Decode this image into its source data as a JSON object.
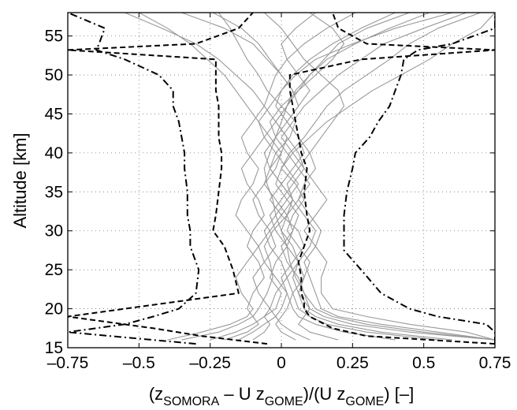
{
  "chart_data": {
    "type": "line",
    "xlabel": {
      "parts": [
        {
          "text": "(z",
          "sub": false
        },
        {
          "text": "SOMORA",
          "sub": true
        },
        {
          "text": " – U z",
          "sub": false
        },
        {
          "text": "GOME",
          "sub": true
        },
        {
          "text": ")/(U z",
          "sub": false
        },
        {
          "text": "GOME",
          "sub": true
        },
        {
          "text": ") [–]",
          "sub": false
        }
      ]
    },
    "ylabel": "Altitude [km]",
    "xlim": [
      -0.75,
      0.75
    ],
    "ylim": [
      15,
      58
    ],
    "x_ticks": [
      "–0.75",
      "–0.5",
      "–0.25",
      "0",
      "0.25",
      "0.5",
      "0.75"
    ],
    "x_tick_values": [
      -0.75,
      -0.5,
      -0.25,
      0,
      0.25,
      0.5,
      0.75
    ],
    "y_ticks": [
      "15",
      "20",
      "25",
      "30",
      "35",
      "40",
      "45",
      "50",
      "55"
    ],
    "y_tick_values": [
      15,
      20,
      25,
      30,
      35,
      40,
      45,
      50,
      55
    ],
    "grid": true,
    "colors": {
      "individual_profiles": "#999999",
      "statistics": "#000000"
    },
    "statistics": [
      {
        "line_style": "dashed",
        "altitude": [
          15.5,
          16.5,
          17.5,
          19,
          20,
          21,
          22,
          24,
          26,
          28,
          30,
          32,
          35,
          38,
          40,
          42,
          44,
          46,
          48,
          50,
          52,
          53.2,
          54,
          56,
          58
        ],
        "x": [
          0.75,
          0.3,
          0.18,
          0.1,
          0.08,
          0.08,
          0.07,
          0.07,
          0.06,
          0.08,
          0.1,
          0.09,
          0.08,
          0.09,
          0.07,
          0.06,
          0.05,
          0.04,
          0.03,
          0.03,
          0.28,
          0.75,
          0.3,
          0.2,
          0.18
        ]
      },
      {
        "line_style": "dashed",
        "altitude": [
          15.5,
          16.5,
          17.5,
          19,
          20,
          22,
          25,
          28,
          30,
          32,
          35,
          38,
          40,
          42,
          44,
          46,
          48,
          50,
          52,
          53.2,
          54,
          56,
          58
        ],
        "x": [
          -0.05,
          -0.28,
          -0.45,
          -0.75,
          -0.55,
          -0.15,
          -0.17,
          -0.2,
          -0.24,
          -0.23,
          -0.22,
          -0.21,
          -0.21,
          -0.22,
          -0.22,
          -0.22,
          -0.23,
          -0.23,
          -0.23,
          -0.75,
          -0.3,
          -0.15,
          -0.1
        ]
      },
      {
        "line_style": "dashdot",
        "altitude": [
          15.5,
          16.5,
          17,
          18,
          19,
          20,
          22,
          25,
          27.5,
          30,
          32,
          35,
          38,
          40,
          42,
          44,
          46,
          48,
          50,
          52,
          53.2,
          54,
          56,
          58
        ],
        "x": [
          0.75,
          0.75,
          0.75,
          0.72,
          0.55,
          0.45,
          0.35,
          0.28,
          0.22,
          0.22,
          0.22,
          0.23,
          0.25,
          0.26,
          0.31,
          0.34,
          0.38,
          0.4,
          0.42,
          0.43,
          0.48,
          0.6,
          0.75,
          0.75
        ]
      },
      {
        "line_style": "dashdot",
        "altitude": [
          15.5,
          16.5,
          17,
          18,
          19,
          20,
          22,
          25,
          28,
          30,
          32,
          35,
          38,
          40,
          42,
          44,
          46,
          48,
          50,
          52,
          53.2,
          54,
          56,
          58
        ],
        "x": [
          -0.3,
          -0.6,
          -0.75,
          -0.55,
          -0.45,
          -0.36,
          -0.3,
          -0.29,
          -0.32,
          -0.32,
          -0.33,
          -0.33,
          -0.34,
          -0.34,
          -0.35,
          -0.36,
          -0.38,
          -0.38,
          -0.43,
          -0.55,
          -0.65,
          -0.64,
          -0.62,
          -0.75
        ]
      }
    ],
    "individual_profiles": [
      {
        "altitude": [
          16,
          17,
          18,
          19,
          20,
          22,
          24,
          26,
          28,
          30,
          32,
          34,
          36,
          38,
          40,
          42,
          44,
          46,
          48,
          50,
          52,
          54,
          56,
          58
        ],
        "x": [
          0.75,
          0.45,
          0.25,
          0.15,
          0.1,
          0.08,
          0.05,
          0.03,
          0.02,
          0.0,
          -0.02,
          -0.03,
          -0.05,
          -0.06,
          -0.04,
          -0.02,
          0.0,
          0.02,
          0.05,
          0.1,
          0.15,
          0.2,
          0.3,
          0.45
        ]
      },
      {
        "altitude": [
          16,
          17,
          18,
          19,
          20,
          22,
          24,
          26,
          28,
          30,
          32,
          34,
          36,
          38,
          40,
          42,
          44,
          46,
          48,
          50,
          52,
          54,
          56,
          58
        ],
        "x": [
          -0.35,
          -0.22,
          -0.15,
          -0.1,
          -0.08,
          -0.05,
          -0.03,
          -0.04,
          -0.06,
          -0.03,
          0.02,
          0.04,
          0.0,
          -0.04,
          -0.02,
          0.03,
          0.05,
          0.0,
          -0.05,
          -0.08,
          -0.12,
          -0.15,
          -0.18,
          -0.22
        ]
      },
      {
        "altitude": [
          16,
          17,
          18,
          19,
          20,
          22,
          24,
          26,
          28,
          30,
          32,
          34,
          36,
          38,
          40,
          42,
          44,
          46,
          48,
          50,
          52,
          54,
          56,
          58
        ],
        "x": [
          0.6,
          0.35,
          0.2,
          0.12,
          0.08,
          0.06,
          0.08,
          0.1,
          0.06,
          0.02,
          0.04,
          0.08,
          0.05,
          0.0,
          0.03,
          0.08,
          0.12,
          0.16,
          0.22,
          0.3,
          0.38,
          0.45,
          0.55,
          0.7
        ]
      },
      {
        "altitude": [
          16,
          17,
          18,
          19,
          20,
          22,
          24,
          26,
          28,
          30,
          32,
          34,
          36,
          38,
          40,
          42,
          44,
          46,
          48,
          50,
          52,
          54,
          56,
          58
        ],
        "x": [
          -0.2,
          -0.12,
          -0.08,
          -0.1,
          -0.12,
          -0.1,
          -0.06,
          -0.08,
          -0.12,
          -0.1,
          -0.06,
          -0.08,
          -0.12,
          -0.14,
          -0.1,
          -0.06,
          -0.02,
          0.02,
          0.04,
          0.0,
          -0.05,
          -0.1,
          -0.2,
          -0.35
        ]
      },
      {
        "altitude": [
          16,
          17,
          18,
          19,
          20,
          22,
          24,
          26,
          28,
          30,
          32,
          34,
          36,
          38,
          40,
          42,
          44,
          46,
          48,
          50,
          52,
          54,
          56,
          58
        ],
        "x": [
          0.75,
          0.55,
          0.35,
          0.2,
          0.14,
          0.12,
          0.1,
          0.08,
          0.12,
          0.14,
          0.1,
          0.06,
          0.08,
          0.12,
          0.1,
          0.06,
          0.02,
          -0.02,
          0.0,
          0.05,
          0.12,
          0.25,
          0.4,
          0.6
        ]
      },
      {
        "altitude": [
          16,
          17,
          18,
          19,
          20,
          22,
          24,
          26,
          28,
          30,
          32,
          34,
          36,
          38,
          40,
          42,
          44,
          46,
          48,
          50,
          52,
          54,
          56,
          58
        ],
        "x": [
          -0.4,
          -0.28,
          -0.18,
          -0.12,
          -0.1,
          -0.14,
          -0.16,
          -0.12,
          -0.08,
          -0.12,
          -0.16,
          -0.14,
          -0.1,
          -0.08,
          -0.12,
          -0.14,
          -0.1,
          -0.06,
          -0.1,
          -0.16,
          -0.22,
          -0.3,
          -0.42,
          -0.55
        ]
      },
      {
        "altitude": [
          16,
          17,
          18,
          19,
          20,
          22,
          24,
          26,
          28,
          30,
          32,
          34,
          36,
          38,
          40,
          42,
          44,
          46,
          48,
          50,
          52,
          54,
          56,
          58
        ],
        "x": [
          0.4,
          0.22,
          0.12,
          0.06,
          0.04,
          0.02,
          0.0,
          0.04,
          0.08,
          0.06,
          0.0,
          -0.04,
          0.0,
          0.04,
          0.08,
          0.06,
          0.02,
          0.06,
          0.1,
          0.06,
          0.02,
          0.0,
          0.05,
          0.12
        ]
      },
      {
        "altitude": [
          16,
          17,
          18,
          19,
          20,
          22,
          24,
          26,
          28,
          30,
          32,
          34,
          36,
          38,
          40,
          42,
          44,
          46,
          48,
          50,
          52,
          54,
          56,
          58
        ],
        "x": [
          0.1,
          0.04,
          0.0,
          -0.02,
          -0.04,
          -0.02,
          0.02,
          0.0,
          -0.04,
          -0.06,
          -0.02,
          0.02,
          0.06,
          0.02,
          -0.02,
          -0.06,
          -0.08,
          -0.04,
          0.0,
          0.04,
          0.1,
          0.18,
          0.28,
          0.4
        ]
      },
      {
        "altitude": [
          16,
          17,
          18,
          19,
          20,
          22,
          24,
          26,
          28,
          30,
          32,
          34,
          36,
          38,
          40,
          42,
          44,
          46,
          48,
          50,
          52,
          54,
          56,
          58
        ],
        "x": [
          0.75,
          0.65,
          0.45,
          0.3,
          0.18,
          0.14,
          0.14,
          0.16,
          0.12,
          0.08,
          0.12,
          0.16,
          0.12,
          0.08,
          0.04,
          0.0,
          0.04,
          0.08,
          0.14,
          0.2,
          0.28,
          0.36,
          0.5,
          0.65
        ]
      },
      {
        "altitude": [
          16,
          17,
          18,
          19,
          20,
          22,
          24,
          26,
          28,
          30,
          32,
          34,
          36,
          38,
          40,
          42,
          44,
          46,
          48,
          50,
          52,
          54,
          56,
          58
        ],
        "x": [
          -0.1,
          -0.06,
          -0.04,
          -0.06,
          -0.02,
          0.0,
          -0.04,
          -0.02,
          0.02,
          0.04,
          0.02,
          -0.02,
          -0.06,
          -0.04,
          0.0,
          0.02,
          -0.02,
          -0.06,
          -0.04,
          -0.02,
          0.02,
          0.08,
          0.16,
          0.26
        ]
      },
      {
        "altitude": [
          16,
          17,
          18,
          19,
          20,
          22,
          24,
          26,
          28,
          30,
          32,
          34,
          36,
          38,
          40,
          42,
          44,
          46,
          48,
          50,
          52,
          54,
          56,
          58
        ],
        "x": [
          0.2,
          0.1,
          0.06,
          0.08,
          0.1,
          0.06,
          0.04,
          0.06,
          0.1,
          0.12,
          0.08,
          0.04,
          0.02,
          0.06,
          0.1,
          0.14,
          0.18,
          0.22,
          0.2,
          0.14,
          0.08,
          0.04,
          0.0,
          -0.06
        ]
      },
      {
        "altitude": [
          16,
          17,
          18,
          19,
          20,
          22,
          24,
          26,
          28,
          30,
          32,
          34,
          36,
          38,
          40,
          42,
          44,
          46,
          48,
          50,
          52,
          54,
          56,
          58
        ],
        "x": [
          -0.25,
          -0.16,
          -0.1,
          -0.06,
          -0.04,
          -0.08,
          -0.1,
          -0.06,
          -0.02,
          -0.04,
          -0.08,
          -0.1,
          -0.06,
          -0.02,
          0.0,
          -0.04,
          -0.08,
          -0.12,
          -0.16,
          -0.2,
          -0.26,
          -0.32,
          -0.4,
          -0.5
        ]
      },
      {
        "altitude": [
          16,
          17,
          18,
          19,
          20,
          22,
          24,
          26,
          28,
          30,
          32,
          34,
          36,
          38,
          40,
          42,
          44,
          46,
          48,
          50,
          52,
          54,
          56,
          58
        ],
        "x": [
          0.75,
          0.5,
          0.3,
          0.18,
          0.12,
          0.08,
          0.06,
          0.02,
          0.0,
          0.04,
          0.06,
          0.02,
          -0.02,
          0.0,
          0.04,
          0.1,
          0.16,
          0.24,
          0.32,
          0.42,
          0.52,
          0.6,
          0.7,
          0.75
        ]
      },
      {
        "altitude": [
          16,
          17,
          18,
          19,
          20,
          22,
          24,
          26,
          28,
          30,
          32,
          34,
          36,
          38,
          40,
          42,
          44,
          46,
          48,
          50,
          52,
          54,
          56,
          58
        ],
        "x": [
          0.05,
          0.0,
          -0.02,
          0.0,
          0.02,
          0.04,
          0.08,
          0.06,
          0.02,
          -0.02,
          -0.04,
          0.0,
          0.04,
          0.08,
          0.06,
          0.02,
          -0.02,
          0.02,
          0.06,
          0.12,
          0.18,
          0.22,
          0.18,
          0.1
        ]
      },
      {
        "altitude": [
          16,
          17,
          18,
          19,
          20,
          22,
          24,
          26,
          28,
          30,
          32,
          34,
          36,
          38,
          40,
          42,
          44,
          46,
          48,
          50,
          52,
          54,
          56,
          58
        ],
        "x": [
          0.55,
          0.3,
          0.16,
          0.1,
          0.06,
          0.04,
          0.02,
          0.06,
          0.04,
          0.0,
          0.02,
          0.06,
          0.1,
          0.06,
          0.02,
          -0.02,
          -0.04,
          0.0,
          0.06,
          0.1,
          0.16,
          0.26,
          0.38,
          0.52
        ]
      },
      {
        "altitude": [
          16,
          17,
          18,
          19,
          20,
          22,
          24,
          26,
          28,
          30,
          32,
          34,
          36,
          38,
          40,
          42,
          44,
          46,
          48,
          50,
          52,
          54,
          56,
          58
        ],
        "x": [
          -0.15,
          -0.1,
          -0.06,
          -0.02,
          0.0,
          0.02,
          -0.02,
          -0.06,
          -0.08,
          -0.04,
          0.0,
          0.04,
          0.0,
          -0.04,
          -0.06,
          -0.02,
          0.02,
          0.06,
          0.04,
          0.0,
          -0.04,
          -0.08,
          -0.14,
          -0.24
        ]
      }
    ]
  }
}
